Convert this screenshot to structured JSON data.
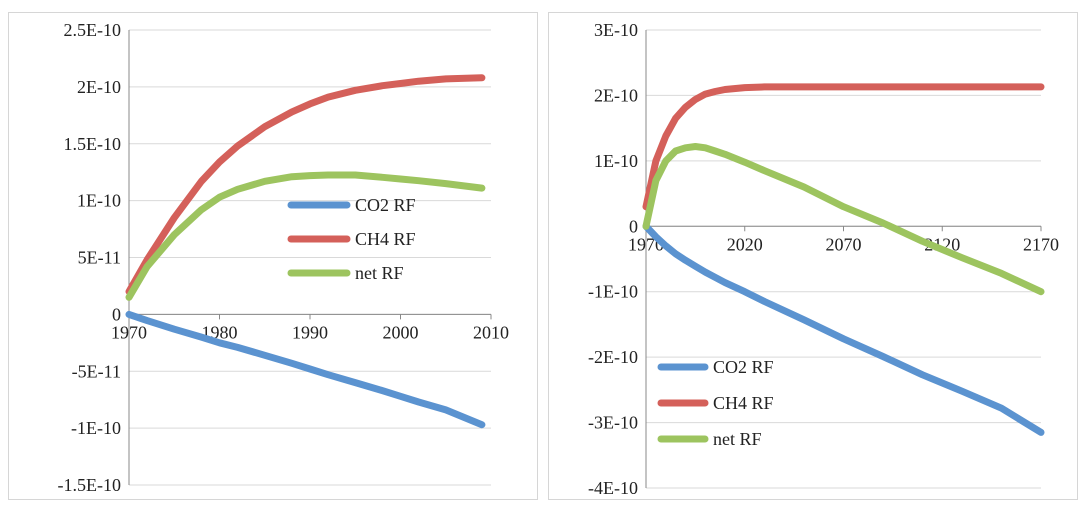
{
  "colors": {
    "co2": "#5B93D0",
    "ch4": "#D4605A",
    "net": "#9DC45F",
    "grid": "#d9d9d9",
    "axis": "#888888"
  },
  "chart_data": [
    {
      "type": "line",
      "title": "",
      "xlabel": "",
      "ylabel": "",
      "xlim": [
        1970,
        2010
      ],
      "ylim": [
        -1.5e-10,
        2.5e-10
      ],
      "grid": true,
      "legend_position": "center-right",
      "x_ticks": [
        1970,
        1980,
        1990,
        2000,
        2010
      ],
      "x_tick_labels": [
        "1970",
        "1980",
        "1990",
        "2000",
        "2010"
      ],
      "y_ticks": [
        2.5e-10,
        2e-10,
        1.5e-10,
        1e-10,
        5e-11,
        0,
        -5e-11,
        -1e-10,
        -1.5e-10
      ],
      "y_tick_labels": [
        "2.5E-10",
        "2E-10",
        "1.5E-10",
        "1E-10",
        "5E-11",
        "0",
        "-5E-11",
        "-1E-10",
        "-1.5E-10"
      ],
      "x": [
        1970,
        1972,
        1975,
        1978,
        1980,
        1982,
        1985,
        1988,
        1990,
        1992,
        1995,
        1998,
        2000,
        2002,
        2005,
        2009
      ],
      "series": [
        {
          "name": "CO2 RF",
          "values": [
            0,
            -5.5e-12,
            -1.3e-11,
            -2e-11,
            -2.5e-11,
            -2.9e-11,
            -3.6e-11,
            -4.3e-11,
            -4.8e-11,
            -5.3e-11,
            -6e-11,
            -6.7e-11,
            -7.2e-11,
            -7.7e-11,
            -8.4e-11,
            -9.7e-11
          ]
        },
        {
          "name": "CH4 RF",
          "values": [
            2e-11,
            4.8e-11,
            8.5e-11,
            1.17e-10,
            1.34e-10,
            1.48e-10,
            1.65e-10,
            1.78e-10,
            1.85e-10,
            1.91e-10,
            1.97e-10,
            2.01e-10,
            2.03e-10,
            2.05e-10,
            2.07e-10,
            2.08e-10
          ]
        },
        {
          "name": "net RF",
          "values": [
            1.5e-11,
            4.2e-11,
            7e-11,
            9.2e-11,
            1.03e-10,
            1.1e-10,
            1.17e-10,
            1.21e-10,
            1.22e-10,
            1.225e-10,
            1.225e-10,
            1.205e-10,
            1.19e-10,
            1.175e-10,
            1.15e-10,
            1.11e-10
          ]
        }
      ]
    },
    {
      "type": "line",
      "title": "",
      "xlabel": "",
      "ylabel": "",
      "xlim": [
        1970,
        2170
      ],
      "ylim": [
        -4e-10,
        3e-10
      ],
      "grid": true,
      "legend_position": "bottom-left",
      "x_ticks": [
        1970,
        2020,
        2070,
        2120,
        2170
      ],
      "x_tick_labels": [
        "1970",
        "2020",
        "2070",
        "2120",
        "2170"
      ],
      "y_ticks": [
        3e-10,
        2e-10,
        1e-10,
        0,
        -1e-10,
        -2e-10,
        -3e-10,
        -4e-10
      ],
      "y_tick_labels": [
        "3E-10",
        "2E-10",
        "1E-10",
        "0",
        "-1E-10",
        "-2E-10",
        "-3E-10",
        "-4E-10"
      ],
      "x": [
        1970,
        1975,
        1980,
        1985,
        1990,
        1995,
        2000,
        2005,
        2010,
        2020,
        2030,
        2050,
        2070,
        2090,
        2110,
        2130,
        2150,
        2170
      ],
      "series": [
        {
          "name": "CO2 RF",
          "values": [
            0,
            -1.6e-11,
            -3e-11,
            -4.2e-11,
            -5.2e-11,
            -6.1e-11,
            -7e-11,
            -7.8e-11,
            -8.6e-11,
            -1e-10,
            -1.15e-10,
            -1.43e-10,
            -1.72e-10,
            -1.99e-10,
            -2.27e-10,
            -2.52e-10,
            -2.78e-10,
            -3.15e-10
          ]
        },
        {
          "name": "CH4 RF",
          "values": [
            3e-11,
            1e-10,
            1.38e-10,
            1.65e-10,
            1.82e-10,
            1.94e-10,
            2.02e-10,
            2.06e-10,
            2.09e-10,
            2.12e-10,
            2.13e-10,
            2.13e-10,
            2.13e-10,
            2.13e-10,
            2.13e-10,
            2.13e-10,
            2.13e-10,
            2.13e-10
          ]
        },
        {
          "name": "net RF",
          "values": [
            0,
            7e-11,
            1e-10,
            1.15e-10,
            1.2e-10,
            1.22e-10,
            1.2e-10,
            1.15e-10,
            1.1e-10,
            9.8e-11,
            8.5e-11,
            6e-11,
            3e-11,
            5e-12,
            -2.3e-11,
            -4.8e-11,
            -7.2e-11,
            -1e-10
          ]
        }
      ]
    }
  ]
}
